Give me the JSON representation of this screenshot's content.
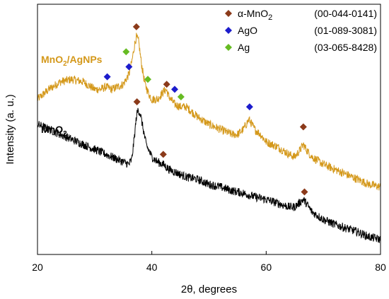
{
  "chart_data": {
    "type": "line",
    "xlabel": "2θ, degrees",
    "ylabel": "Intensity (a. u.)",
    "xlim": [
      20,
      80
    ],
    "ylim": [
      0,
      100
    ],
    "xticks": [
      20,
      40,
      60,
      80
    ],
    "grid": false,
    "legend_position": "top-right",
    "series": [
      {
        "name": "MnO2/AgNPs",
        "name_main": "MnO",
        "name_sub": "2",
        "name_rest": "/AgNPs",
        "color": "#d4981a",
        "x": [
          20,
          22,
          24,
          26,
          28,
          30,
          31,
          32,
          33,
          34,
          35,
          35.5,
          36,
          36.5,
          37,
          37.3,
          37.7,
          38.2,
          38.8,
          39.5,
          40,
          41,
          42,
          42.5,
          43,
          44,
          45,
          46,
          48,
          50,
          52,
          54,
          55,
          56,
          57,
          58,
          59,
          60,
          62,
          64,
          65,
          66,
          66.5,
          67,
          68,
          70,
          72,
          74,
          76,
          78,
          80
        ],
        "values": [
          62,
          66,
          69,
          70,
          69,
          66,
          66,
          67,
          66,
          67,
          68,
          70,
          72,
          77,
          84,
          87,
          85,
          76,
          68,
          64,
          62,
          62,
          65,
          66,
          63,
          60,
          59,
          59,
          55,
          52,
          50,
          48,
          48,
          50,
          54,
          50,
          48,
          45,
          43,
          40,
          39,
          42,
          44,
          42,
          39,
          36,
          34,
          32,
          30,
          28,
          27
        ]
      },
      {
        "name": "MnO2",
        "name_main": "MnO",
        "name_sub": "2",
        "name_rest": "",
        "color": "#000000",
        "x": [
          20,
          22,
          24,
          26,
          28,
          30,
          32,
          34,
          35,
          36,
          36.5,
          37,
          37.3,
          37.6,
          38,
          38.5,
          39,
          40,
          41,
          42,
          43,
          44,
          46,
          48,
          50,
          52,
          54,
          56,
          58,
          60,
          62,
          64,
          65,
          66,
          66.5,
          67,
          68,
          70,
          72,
          74,
          76,
          78,
          80
        ],
        "values": [
          52,
          50,
          48,
          46,
          44,
          42,
          40,
          38,
          37,
          36,
          38,
          48,
          55,
          58,
          56,
          50,
          44,
          39,
          37,
          36,
          34,
          33,
          31,
          30,
          28,
          27,
          25.5,
          24.5,
          23,
          22,
          20.5,
          19,
          19,
          21,
          22,
          20.5,
          17,
          14,
          12,
          10.5,
          9,
          7,
          6
        ]
      }
    ],
    "markers": [
      {
        "phase": "alpha-MnO2",
        "x": 37.3,
        "value": 91
      },
      {
        "phase": "AgO",
        "x": 32.2,
        "value": 71
      },
      {
        "phase": "Ag",
        "x": 35.5,
        "value": 81
      },
      {
        "phase": "AgO",
        "x": 36.0,
        "value": 75
      },
      {
        "phase": "Ag",
        "x": 39.3,
        "value": 70
      },
      {
        "phase": "alpha-MnO2",
        "x": 42.6,
        "value": 68
      },
      {
        "phase": "AgO",
        "x": 44.0,
        "value": 66
      },
      {
        "phase": "Ag",
        "x": 45.1,
        "value": 63
      },
      {
        "phase": "AgO",
        "x": 57.1,
        "value": 59
      },
      {
        "phase": "alpha-MnO2",
        "x": 66.5,
        "value": 51
      },
      {
        "phase": "alpha-MnO2",
        "x": 37.4,
        "value": 61
      },
      {
        "phase": "alpha-MnO2",
        "x": 42.0,
        "value": 40
      },
      {
        "phase": "alpha-MnO2",
        "x": 66.7,
        "value": 25
      }
    ],
    "legend": [
      {
        "phase": "alpha-MnO2",
        "label_main": "α-MnO",
        "label_sub": "2",
        "code": "(00-044-0141)",
        "color": "#8b3a1a"
      },
      {
        "phase": "AgO",
        "label_main": "AgO",
        "label_sub": "",
        "code": "(01-089-3081)",
        "color": "#1c1ccc"
      },
      {
        "phase": "Ag",
        "label_main": "Ag",
        "label_sub": "",
        "code": "(03-065-8428)",
        "color": "#66bb22"
      }
    ]
  }
}
